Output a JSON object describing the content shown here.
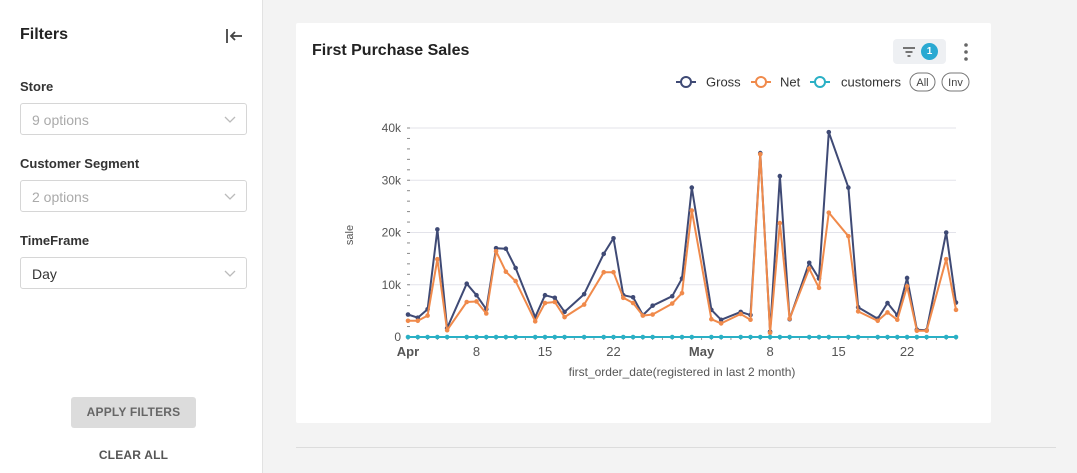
{
  "sidebar": {
    "title": "Filters",
    "fields": [
      {
        "label": "Store",
        "value": "9 options",
        "disabled": true
      },
      {
        "label": "Customer Segment",
        "value": "2 options",
        "disabled": true
      },
      {
        "label": "TimeFrame",
        "value": "Day",
        "disabled": false
      }
    ],
    "apply_label": "APPLY FILTERS",
    "clear_label": "CLEAR ALL"
  },
  "card": {
    "title": "First Purchase Sales",
    "filter_count": "1"
  },
  "legend": {
    "all_label": "All",
    "inv_label": "Inv"
  },
  "colors": {
    "gross": "#3f4a75",
    "net": "#f08a4b",
    "customers": "#2ab0c5"
  },
  "chart_data": {
    "type": "line",
    "xlabel": "first_order_date(registered in last 2 month)",
    "ylabel": "sale",
    "ylim": [
      0,
      40000
    ],
    "yticks": [
      0,
      10000,
      20000,
      30000,
      40000
    ],
    "ytick_labels": [
      "0",
      "10k",
      "20k",
      "30k",
      "40k"
    ],
    "x_start": "2024-04-01",
    "x_end": "2024-05-27",
    "xticks": [
      {
        "date": "2024-04-01",
        "label": "Apr",
        "bold": true
      },
      {
        "date": "2024-04-08",
        "label": "8",
        "bold": false
      },
      {
        "date": "2024-04-15",
        "label": "15",
        "bold": false
      },
      {
        "date": "2024-04-22",
        "label": "22",
        "bold": false
      },
      {
        "date": "2024-05-01",
        "label": "May",
        "bold": true
      },
      {
        "date": "2024-05-08",
        "label": "8",
        "bold": false
      },
      {
        "date": "2024-05-15",
        "label": "15",
        "bold": false
      },
      {
        "date": "2024-05-22",
        "label": "22",
        "bold": false
      }
    ],
    "x": [
      "2024-04-01",
      "2024-04-02",
      "2024-04-03",
      "2024-04-04",
      "2024-04-05",
      "2024-04-07",
      "2024-04-08",
      "2024-04-09",
      "2024-04-10",
      "2024-04-11",
      "2024-04-12",
      "2024-04-14",
      "2024-04-15",
      "2024-04-16",
      "2024-04-17",
      "2024-04-19",
      "2024-04-21",
      "2024-04-22",
      "2024-04-23",
      "2024-04-24",
      "2024-04-25",
      "2024-04-26",
      "2024-04-28",
      "2024-04-29",
      "2024-04-30",
      "2024-05-02",
      "2024-05-03",
      "2024-05-05",
      "2024-05-06",
      "2024-05-07",
      "2024-05-08",
      "2024-05-09",
      "2024-05-10",
      "2024-05-12",
      "2024-05-13",
      "2024-05-14",
      "2024-05-16",
      "2024-05-17",
      "2024-05-19",
      "2024-05-20",
      "2024-05-21",
      "2024-05-22",
      "2024-05-23",
      "2024-05-24",
      "2024-05-26",
      "2024-05-27"
    ],
    "series": [
      {
        "name": "Gross",
        "values": [
          4300,
          3700,
          5300,
          20600,
          1700,
          10200,
          8000,
          5300,
          17000,
          16900,
          13200,
          3800,
          8000,
          7500,
          4800,
          8200,
          15900,
          18900,
          8000,
          7600,
          4200,
          6000,
          7800,
          11200,
          28600,
          5200,
          3300,
          4800,
          4200,
          35200,
          1000,
          30800,
          3400,
          14200,
          11200,
          39200,
          28600,
          5700,
          3500,
          6500,
          4200,
          11300,
          1400,
          1300,
          20000,
          6600
        ]
      },
      {
        "name": "Net",
        "values": [
          3100,
          3100,
          4100,
          14900,
          1300,
          6700,
          6800,
          4500,
          16400,
          12500,
          10700,
          3000,
          6500,
          6700,
          3800,
          6200,
          12400,
          12400,
          7500,
          6500,
          4100,
          4300,
          6400,
          8400,
          24200,
          3400,
          2600,
          4400,
          3300,
          35000,
          800,
          21800,
          3500,
          13100,
          9400,
          23800,
          19300,
          4900,
          3100,
          4700,
          3300,
          9700,
          1200,
          1200,
          14900,
          5200
        ]
      },
      {
        "name": "customers",
        "values": [
          0,
          0,
          0,
          0,
          0,
          0,
          0,
          0,
          0,
          0,
          0,
          0,
          0,
          0,
          0,
          0,
          0,
          0,
          0,
          0,
          0,
          0,
          0,
          0,
          0,
          0,
          0,
          0,
          0,
          0,
          0,
          0,
          0,
          0,
          0,
          0,
          0,
          0,
          0,
          0,
          0,
          0,
          0,
          0,
          0,
          0
        ]
      }
    ]
  }
}
